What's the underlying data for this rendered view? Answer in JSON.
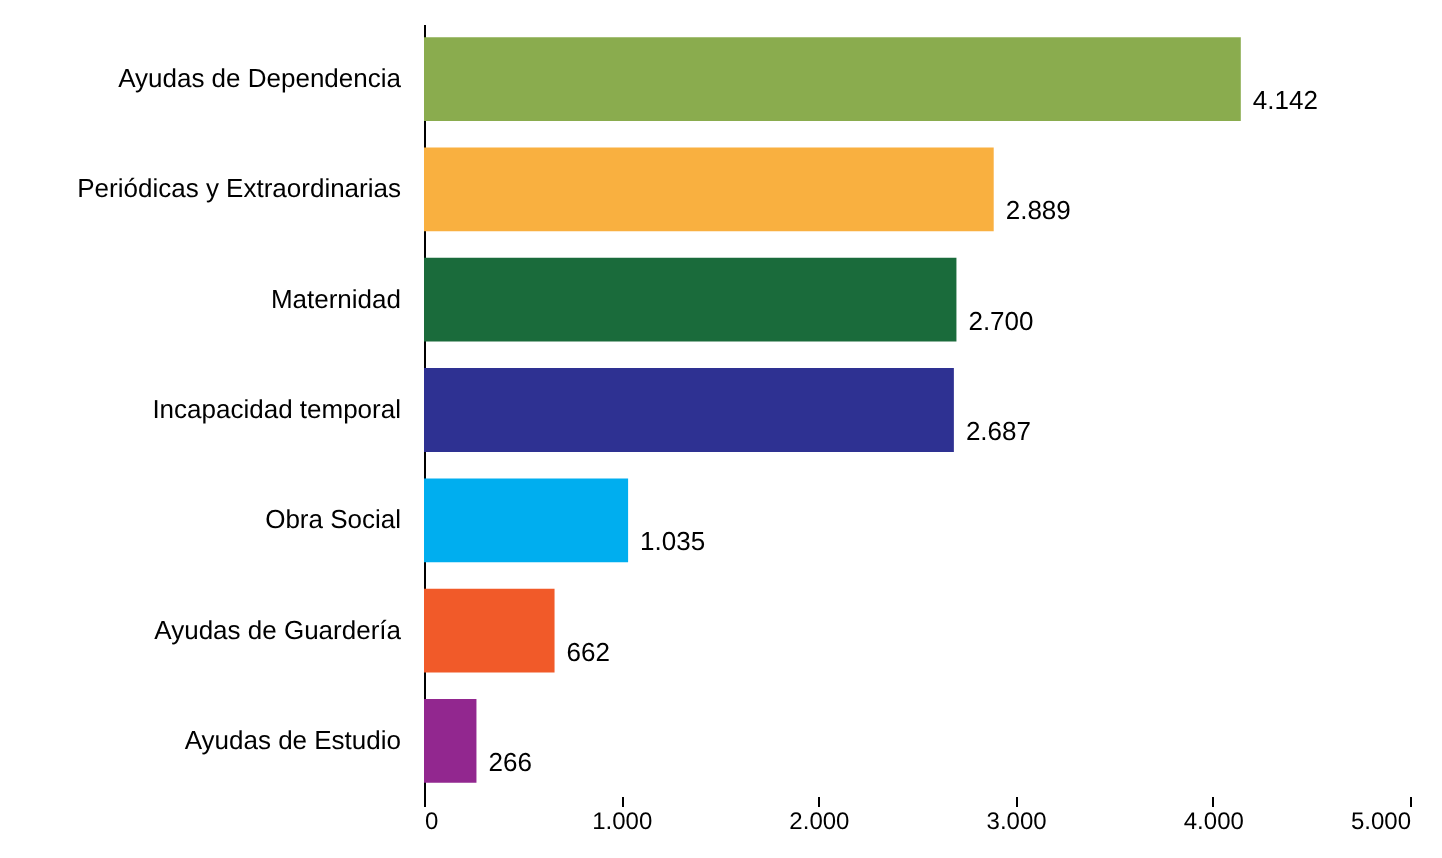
{
  "chart_data": {
    "type": "bar",
    "orientation": "horizontal",
    "categories": [
      "Ayudas de Dependencia",
      "Periódicas y Extraordinarias",
      "Maternidad",
      "Incapacidad temporal",
      "Obra Social",
      "Ayudas de Guardería",
      "Ayudas de Estudio"
    ],
    "values": [
      4142,
      2889,
      2700,
      2687,
      1035,
      662,
      266
    ],
    "colors": [
      "#8aac4e",
      "#f9b040",
      "#1a6b3b",
      "#2e3192",
      "#00aeef",
      "#f15a29",
      "#92278f"
    ],
    "value_labels": [
      "4.142",
      "2.889",
      "2.700",
      "2.687",
      "1.035",
      "662",
      "266"
    ],
    "xlim": [
      0,
      5000
    ],
    "xticks": [
      {
        "value": 0,
        "label": "0"
      },
      {
        "value": 1000,
        "label": "1.000"
      },
      {
        "value": 2000,
        "label": "2.000"
      },
      {
        "value": 3000,
        "label": "3.000"
      },
      {
        "value": 4000,
        "label": "4.000"
      },
      {
        "value": 5000,
        "label": "5.000"
      }
    ],
    "grid": false
  }
}
